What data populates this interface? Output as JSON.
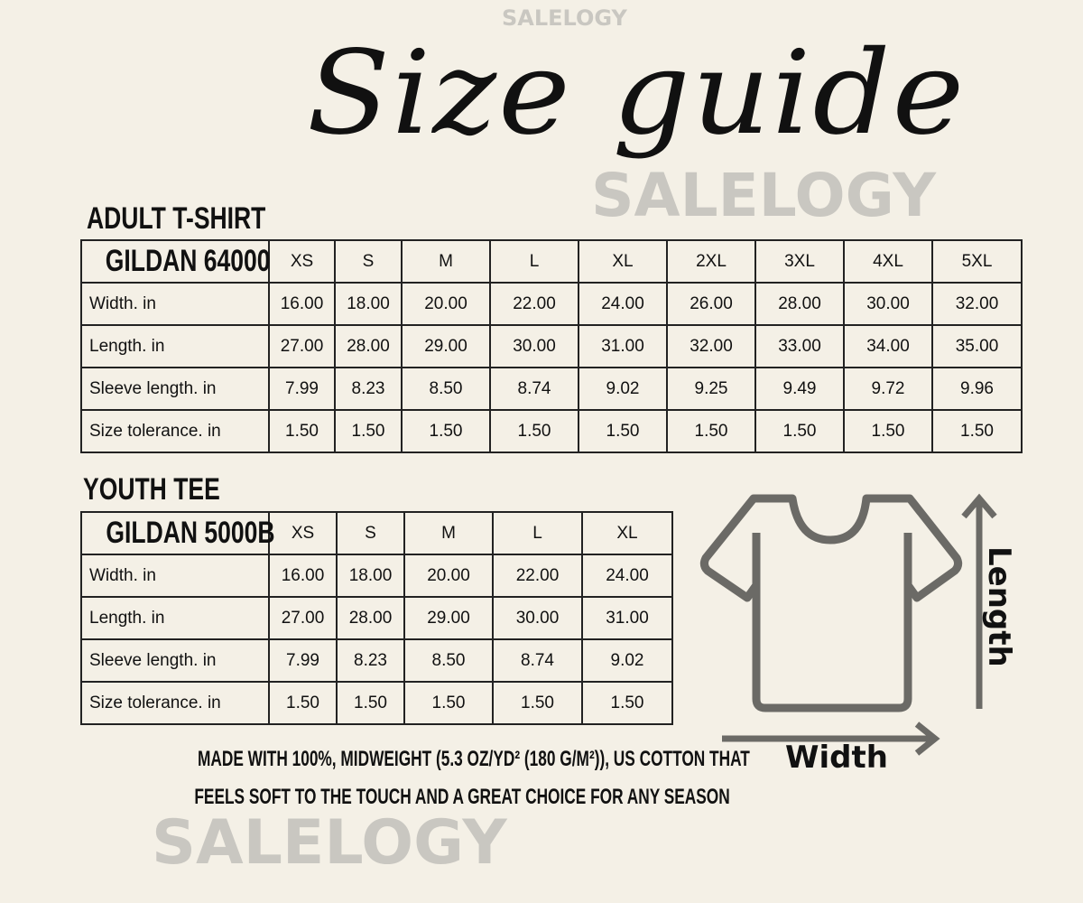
{
  "title": "Size guide",
  "watermark": "SALELOGY",
  "adult": {
    "section": "ADULT T-SHIRT",
    "model": "GILDAN 64000",
    "sizes": [
      "XS",
      "S",
      "M",
      "L",
      "XL",
      "2XL",
      "3XL",
      "4XL",
      "5XL"
    ],
    "rows": [
      {
        "label": "Width. in",
        "values": [
          "16.00",
          "18.00",
          "20.00",
          "22.00",
          "24.00",
          "26.00",
          "28.00",
          "30.00",
          "32.00"
        ]
      },
      {
        "label": "Length. in",
        "values": [
          "27.00",
          "28.00",
          "29.00",
          "30.00",
          "31.00",
          "32.00",
          "33.00",
          "34.00",
          "35.00"
        ]
      },
      {
        "label": "Sleeve length. in",
        "values": [
          "7.99",
          "8.23",
          "8.50",
          "8.74",
          "9.02",
          "9.25",
          "9.49",
          "9.72",
          "9.96"
        ]
      },
      {
        "label": "Size tolerance. in",
        "values": [
          "1.50",
          "1.50",
          "1.50",
          "1.50",
          "1.50",
          "1.50",
          "1.50",
          "1.50",
          "1.50"
        ]
      }
    ]
  },
  "youth": {
    "section": "YOUTH TEE",
    "model": "GILDAN 5000B",
    "sizes": [
      "XS",
      "S",
      "M",
      "L",
      "XL"
    ],
    "rows": [
      {
        "label": "Width. in",
        "values": [
          "16.00",
          "18.00",
          "20.00",
          "22.00",
          "24.00"
        ]
      },
      {
        "label": "Length. in",
        "values": [
          "27.00",
          "28.00",
          "29.00",
          "30.00",
          "31.00"
        ]
      },
      {
        "label": "Sleeve length. in",
        "values": [
          "7.99",
          "8.23",
          "8.50",
          "8.74",
          "9.02"
        ]
      },
      {
        "label": "Size tolerance. in",
        "values": [
          "1.50",
          "1.50",
          "1.50",
          "1.50",
          "1.50"
        ]
      }
    ]
  },
  "note": {
    "line1": "MADE WITH 100%, MIDWEIGHT (5.3 OZ/YD² (180 G/M²)), US COTTON THAT",
    "line2": "FEELS SOFT TO THE TOUCH AND A GREAT CHOICE FOR ANY SEASON"
  },
  "diagram": {
    "length_label": "Length",
    "width_label": "Width",
    "icon": "t-shirt-icon",
    "color": "#6b6a66"
  }
}
